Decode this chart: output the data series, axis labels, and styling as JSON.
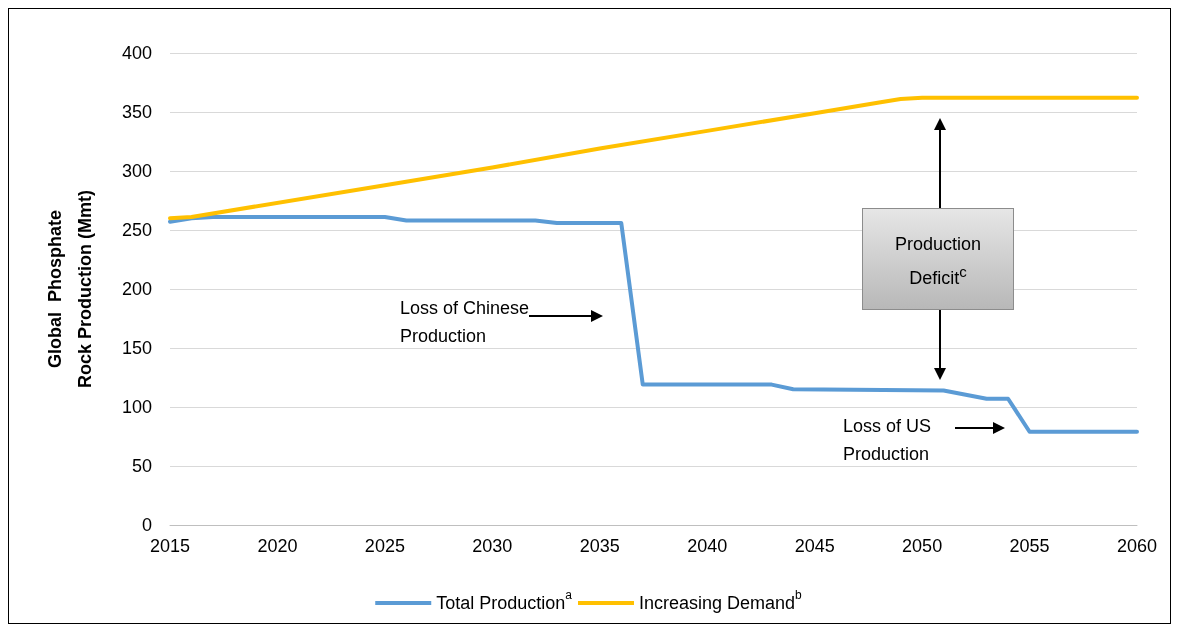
{
  "chart_data": {
    "type": "line",
    "ylabel": "Global  Phosphate\nRock Production (Mmt)",
    "xlim": [
      2015,
      2060
    ],
    "xticks": [
      2015,
      2020,
      2025,
      2030,
      2035,
      2040,
      2045,
      2050,
      2055,
      2060
    ],
    "ylim": [
      0,
      400
    ],
    "yticks": [
      0,
      50,
      100,
      150,
      200,
      250,
      300,
      350,
      400
    ],
    "grid": "y",
    "legend": "bottom",
    "marker": "none",
    "line_style": "solid",
    "series": [
      {
        "name": "Total Production$^{a}$",
        "color": "#5b9bd5",
        "x": [
          2015,
          2016,
          2017,
          2025,
          2026,
          2032,
          2033,
          2036,
          2037,
          2043,
          2044,
          2051,
          2053,
          2054,
          2055,
          2060
        ],
        "values": [
          257,
          260,
          261,
          261,
          258,
          258,
          256,
          256,
          119,
          119,
          115,
          114,
          107,
          107,
          79,
          79
        ]
      },
      {
        "name": "Increasing Demand$^{b}$",
        "color": "#ffc000",
        "x": [
          2015,
          2016,
          2025,
          2030,
          2035,
          2040,
          2045,
          2048,
          2049,
          2050,
          2060
        ],
        "values": [
          260,
          261,
          288,
          303,
          319,
          334,
          349,
          358,
          361,
          362,
          362
        ]
      }
    ],
    "annotations": [
      "Loss of Chinese\nProduction",
      "Production\nDeficit$^{c}$",
      "Loss of US\nProduction"
    ]
  }
}
